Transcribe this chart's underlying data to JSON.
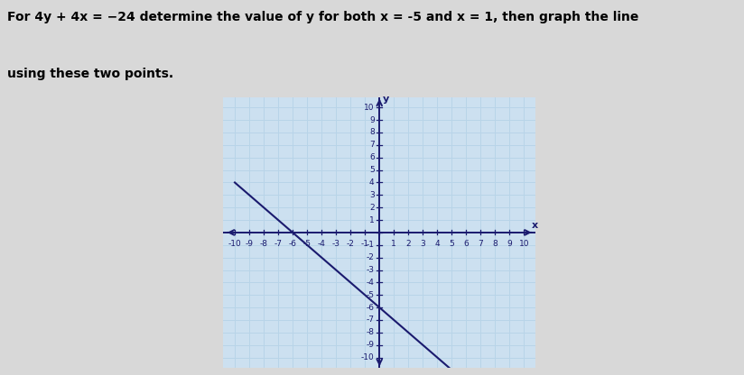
{
  "title_line1": "For 4y + 4x = −24 determine the value of y for both x = -5 and x = 1, then graph the line",
  "title_line2": "using these two points.",
  "points": [
    [
      -5,
      -1
    ],
    [
      1,
      -7
    ]
  ],
  "xlim": [
    -10,
    10
  ],
  "ylim": [
    -10,
    10
  ],
  "xticks": [
    -10,
    -9,
    -8,
    -7,
    -6,
    -5,
    -4,
    -3,
    -2,
    -1,
    1,
    2,
    3,
    4,
    5,
    6,
    7,
    8,
    9,
    10
  ],
  "yticks": [
    -10,
    -9,
    -8,
    -7,
    -6,
    -5,
    -4,
    -3,
    -2,
    -1,
    1,
    2,
    3,
    4,
    5,
    6,
    7,
    8,
    9,
    10
  ],
  "grid_color": "#b8d4e8",
  "grid_alpha": 0.8,
  "axis_color": "#1a1a6e",
  "line_color": "#1a1a6e",
  "line_width": 1.5,
  "tick_label_color": "#1a1a6e",
  "tick_fontsize": 6.5,
  "bg_color": "#cce0f0",
  "fig_bg_color": "#d8d8d8",
  "text_color": "#000000",
  "text_fontsize": 10,
  "xlabel": "x",
  "ylabel": "y"
}
